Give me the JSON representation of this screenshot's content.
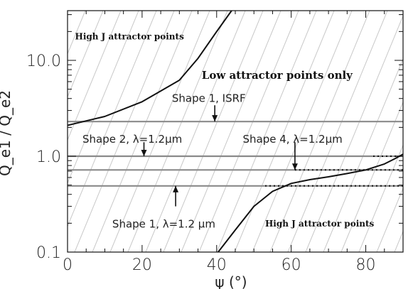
{
  "chart_data": {
    "type": "line",
    "xlabel": "ψ (°)",
    "ylabel": "Q_e1 / Q_e2",
    "xlim": [
      0,
      90
    ],
    "ylim": [
      0.1,
      30
    ],
    "yscale": "log",
    "x_ticks": [
      0,
      20,
      40,
      60,
      80
    ],
    "x_tick_labels": [
      "0",
      "20",
      "40",
      "60",
      "80"
    ],
    "y_ticks": [
      0.1,
      1.0,
      10.0
    ],
    "y_tick_labels": [
      "0.1",
      "1.0",
      "10.0"
    ],
    "hatched_background": true,
    "grid": false,
    "series": [
      {
        "name": "",
        "style": "solid-black",
        "role": "upper-boundary",
        "x": [
          0,
          10,
          20,
          30,
          35,
          40,
          44
        ],
        "y": [
          2.1,
          2.6,
          3.7,
          6.2,
          10.5,
          20,
          33
        ]
      },
      {
        "name": "",
        "style": "solid-black",
        "role": "lower-boundary",
        "x": [
          39,
          45,
          50,
          55,
          60,
          65,
          70,
          75,
          80,
          85,
          88,
          90
        ],
        "y": [
          0.085,
          0.17,
          0.3,
          0.43,
          0.52,
          0.57,
          0.61,
          0.66,
          0.72,
          0.83,
          0.95,
          1.05
        ]
      },
      {
        "name": "",
        "style": "gray",
        "x": [
          0,
          90
        ],
        "y": [
          2.3,
          2.3
        ]
      },
      {
        "name": "",
        "style": "gray",
        "x": [
          0,
          90
        ],
        "y": [
          1.0,
          1.0
        ]
      },
      {
        "name": "",
        "style": "gray",
        "x": [
          0,
          90
        ],
        "y": [
          0.72,
          0.72
        ]
      },
      {
        "name": "",
        "style": "gray",
        "x": [
          0,
          90
        ],
        "y": [
          0.49,
          0.49
        ]
      },
      {
        "name": "",
        "style": "dotted-black",
        "x": [
          82,
          90
        ],
        "y": [
          1.0,
          1.0
        ]
      },
      {
        "name": "",
        "style": "dotted-black",
        "x": [
          61,
          90
        ],
        "y": [
          0.72,
          0.72
        ]
      },
      {
        "name": "",
        "style": "dotted-black",
        "x": [
          53,
          90
        ],
        "y": [
          0.49,
          0.49
        ]
      }
    ],
    "arrows": [
      {
        "x": 39.5,
        "from_y": 3.4,
        "to_y": 2.3,
        "direction": "down"
      },
      {
        "x": 20.5,
        "from_y": 1.4,
        "to_y": 1.0,
        "direction": "down"
      },
      {
        "x": 61,
        "from_y": 1.4,
        "to_y": 0.72,
        "direction": "down"
      },
      {
        "x": 29,
        "from_y": 0.3,
        "to_y": 0.49,
        "direction": "up"
      }
    ],
    "annotations": [
      {
        "text": "High J attractor points",
        "x": 2,
        "y": 16.5,
        "style": "bold-small"
      },
      {
        "text": "Low attractor points only",
        "x": 36,
        "y": 6.4,
        "style": "bold"
      },
      {
        "text": "Shape 1, ISRF",
        "x": 28,
        "y": 3.7,
        "style": "normal"
      },
      {
        "text": "Shape 2, λ=1.2μm",
        "x": 4,
        "y": 1.38,
        "style": "normal"
      },
      {
        "text": "Shape 4, λ=1.2μm",
        "x": 47,
        "y": 1.38,
        "style": "normal"
      },
      {
        "text": "Shape 1, λ=1.2 μm",
        "x": 12,
        "y": 0.18,
        "style": "normal"
      },
      {
        "text": "High J attractor points",
        "x": 53,
        "y": 0.185,
        "style": "bold-small"
      }
    ]
  }
}
